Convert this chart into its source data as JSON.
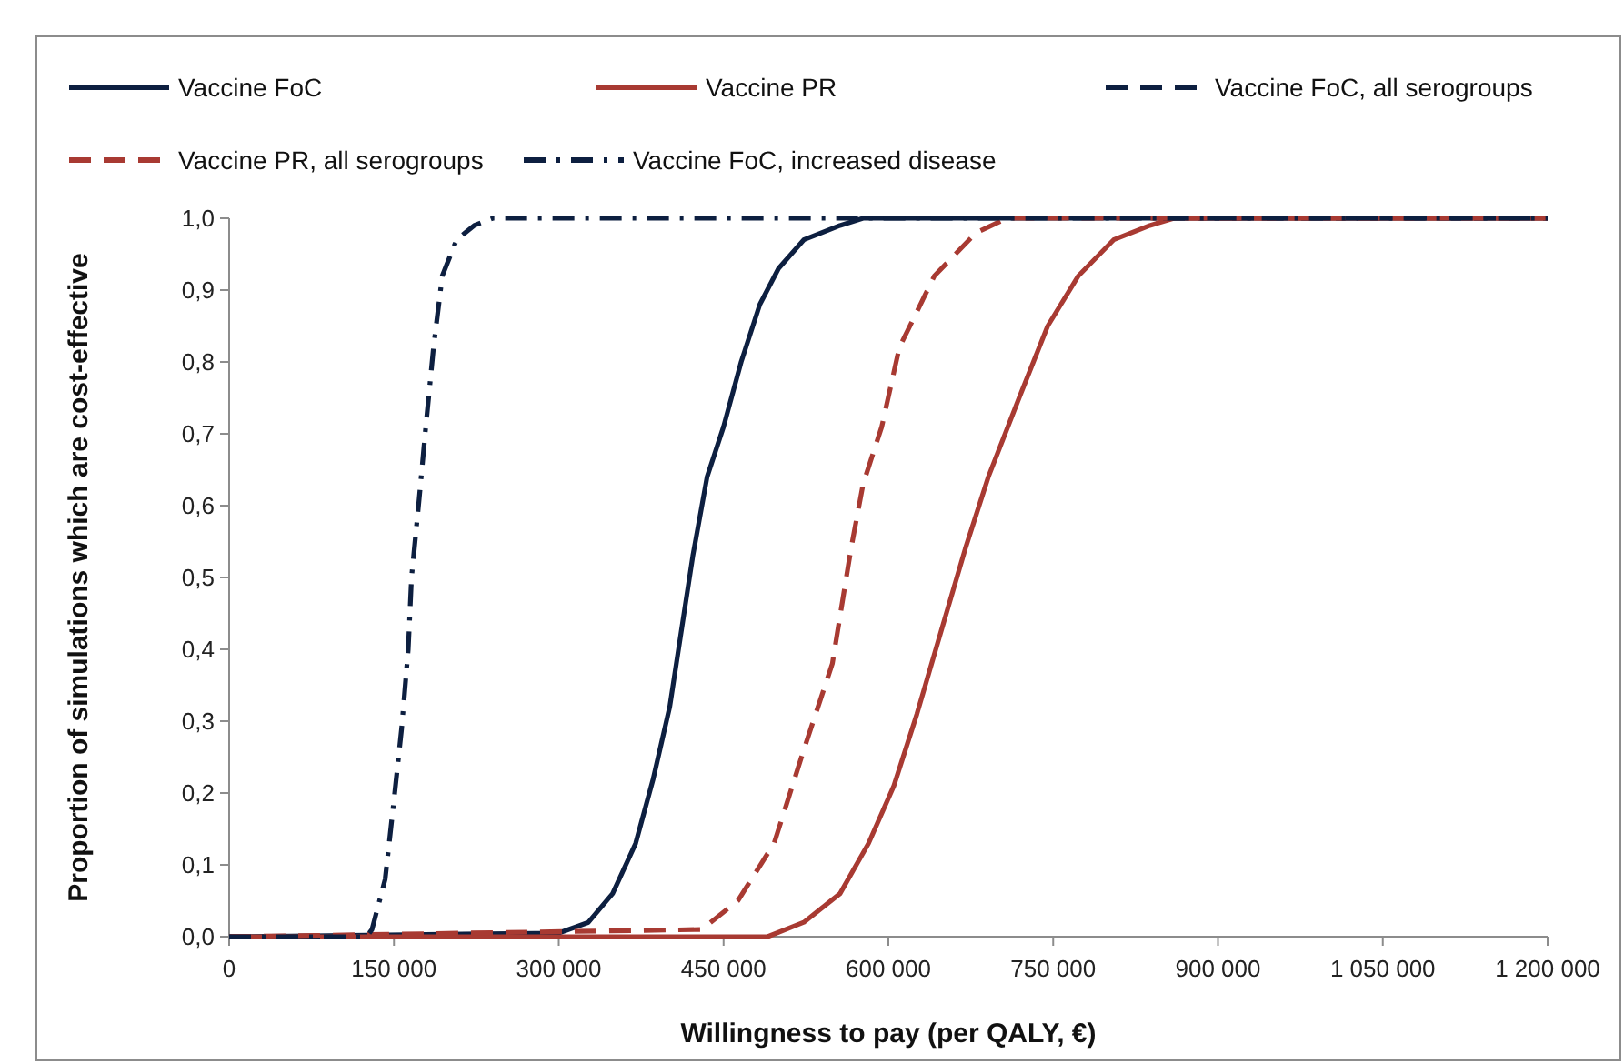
{
  "chart_data": {
    "type": "line",
    "xlabel": "Willingness to pay (per QALY, €)",
    "ylabel": "Proportion of simulations which are cost-effective",
    "xlim": [
      0,
      1200000
    ],
    "ylim": [
      0,
      1
    ],
    "xticks": [
      0,
      {
        "value": 150000,
        "label": "150 000"
      },
      {
        "value": 300000,
        "label": "300 000"
      },
      {
        "value": 450000,
        "label": "450 000"
      },
      {
        "value": 600000,
        "label": "600 000"
      },
      {
        "value": 750000,
        "label": "750 000"
      },
      {
        "value": 900000,
        "label": "900 000"
      },
      {
        "value": 1050000,
        "label": "1 050 000"
      },
      {
        "value": 1200000,
        "label": "1 200 000"
      }
    ],
    "yticks": [
      {
        "value": 0,
        "label": "0,0"
      },
      {
        "value": 0.1,
        "label": "0,1"
      },
      {
        "value": 0.2,
        "label": "0,2"
      },
      {
        "value": 0.3,
        "label": "0,3"
      },
      {
        "value": 0.4,
        "label": "0,4"
      },
      {
        "value": 0.5,
        "label": "0,5"
      },
      {
        "value": 0.6,
        "label": "0,6"
      },
      {
        "value": 0.7,
        "label": "0,7"
      },
      {
        "value": 0.8,
        "label": "0,8"
      },
      {
        "value": 0.9,
        "label": "0,9"
      },
      {
        "value": 1,
        "label": "1,0"
      }
    ],
    "grid": false,
    "legend": "top",
    "marker": "none",
    "series": [
      {
        "name": "Vaccine FoC",
        "color": "#0d1f40",
        "line_style": "solid",
        "x": [
          0,
          300000,
          327000,
          349000,
          370000,
          386000,
          401000,
          411000,
          422000,
          435000,
          450000,
          466000,
          483000,
          500000,
          523000,
          556000,
          577000,
          1200000
        ],
        "values": [
          0,
          0.005,
          0.02,
          0.06,
          0.13,
          0.22,
          0.32,
          0.42,
          0.53,
          0.64,
          0.71,
          0.8,
          0.88,
          0.93,
          0.97,
          0.99,
          1,
          1
        ]
      },
      {
        "name": "Vaccine PR",
        "color": "#a83a32",
        "line_style": "solid",
        "x": [
          0,
          490000,
          523000,
          556000,
          582000,
          605000,
          626000,
          647000,
          670000,
          691000,
          719000,
          745000,
          773000,
          805000,
          838000,
          860000,
          1200000
        ],
        "values": [
          0,
          0,
          0.02,
          0.06,
          0.13,
          0.21,
          0.31,
          0.42,
          0.54,
          0.64,
          0.75,
          0.85,
          0.92,
          0.97,
          0.99,
          1,
          1
        ]
      },
      {
        "name": "Vaccine FoC, all serogroups",
        "color": "#0d1f40",
        "line_style": "dashed",
        "x": [
          0,
          100000,
          300000,
          850000,
          1200000
        ],
        "values": [
          0,
          0,
          null,
          1,
          1
        ]
      },
      {
        "name": "Vaccine PR, all serogroups",
        "color": "#a83a32",
        "line_style": "dashed",
        "x": [
          0,
          430000,
          463000,
          496000,
          523000,
          549000,
          566000,
          577000,
          594000,
          610000,
          642000,
          680000,
          708000,
          720000,
          1200000
        ],
        "values": [
          0,
          0.01,
          0.05,
          0.13,
          0.26,
          0.38,
          0.54,
          0.63,
          0.71,
          0.82,
          0.92,
          0.98,
          1,
          1,
          1
        ]
      },
      {
        "name": "Vaccine FoC, increased disease",
        "color": "#0d1f40",
        "line_style": "dashdot",
        "x": [
          0,
          125000,
          130000,
          142000,
          150000,
          157000,
          163000,
          166000,
          173000,
          179000,
          186000,
          194000,
          207000,
          223000,
          240000,
          1200000
        ],
        "values": [
          0,
          0,
          0.01,
          0.08,
          0.19,
          0.29,
          0.4,
          0.5,
          0.61,
          0.71,
          0.82,
          0.92,
          0.97,
          0.99,
          1,
          1
        ]
      }
    ]
  }
}
